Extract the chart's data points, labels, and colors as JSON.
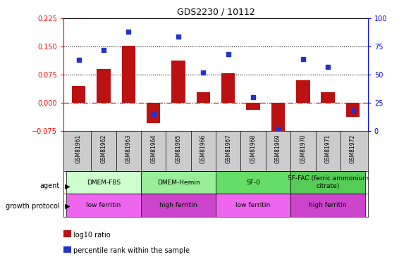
{
  "title": "GDS2230 / 10112",
  "samples": [
    "GSM81961",
    "GSM81962",
    "GSM81963",
    "GSM81964",
    "GSM81965",
    "GSM81966",
    "GSM81967",
    "GSM81968",
    "GSM81969",
    "GSM81970",
    "GSM81971",
    "GSM81972"
  ],
  "log10_ratio": [
    0.045,
    0.09,
    0.152,
    -0.055,
    0.112,
    0.028,
    0.078,
    -0.018,
    -0.11,
    0.06,
    0.028,
    -0.038
  ],
  "percentile_rank": [
    63,
    72,
    88,
    15,
    84,
    52,
    68,
    30,
    2,
    64,
    57,
    18
  ],
  "ylim_left": [
    -0.075,
    0.225
  ],
  "ylim_right": [
    0,
    100
  ],
  "yticks_left": [
    -0.075,
    0,
    0.075,
    0.15,
    0.225
  ],
  "yticks_right": [
    0,
    25,
    50,
    75,
    100
  ],
  "hlines": [
    0.075,
    0.15
  ],
  "bar_color": "#BB1111",
  "dot_color": "#2233CC",
  "zero_line_color": "#BB2222",
  "agent_groups": [
    {
      "label": "DMEM-FBS",
      "start": 0,
      "end": 3,
      "color": "#CCFFCC"
    },
    {
      "label": "DMEM-Hemin",
      "start": 3,
      "end": 6,
      "color": "#99EE99"
    },
    {
      "label": "SF-0",
      "start": 6,
      "end": 9,
      "color": "#66DD66"
    },
    {
      "label": "SF-FAC (ferric ammonium\ncitrate)",
      "start": 9,
      "end": 12,
      "color": "#55CC55"
    }
  ],
  "protocol_groups": [
    {
      "label": "low ferritin",
      "start": 0,
      "end": 3,
      "color": "#EE66EE"
    },
    {
      "label": "high ferritin",
      "start": 3,
      "end": 6,
      "color": "#CC44CC"
    },
    {
      "label": "low ferritin",
      "start": 6,
      "end": 9,
      "color": "#EE66EE"
    },
    {
      "label": "high ferritin",
      "start": 9,
      "end": 12,
      "color": "#CC44CC"
    }
  ],
  "legend_bar_label": "log10 ratio",
  "legend_dot_label": "percentile rank within the sample",
  "bar_legend_color": "#BB1111",
  "dot_legend_color": "#2233CC",
  "background_color": "#FFFFFF"
}
